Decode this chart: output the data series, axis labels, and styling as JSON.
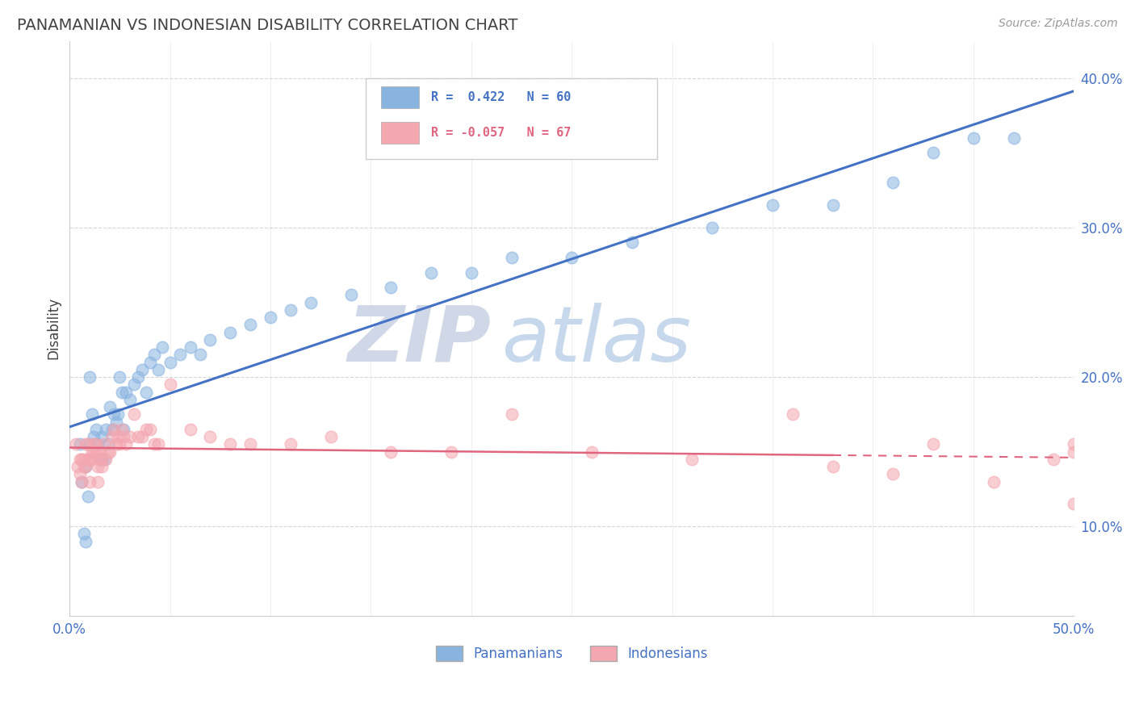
{
  "title": "PANAMANIAN VS INDONESIAN DISABILITY CORRELATION CHART",
  "source": "Source: ZipAtlas.com",
  "ylabel": "Disability",
  "xlim": [
    0.0,
    0.5
  ],
  "ylim": [
    0.04,
    0.425
  ],
  "yticks": [
    0.1,
    0.2,
    0.3,
    0.4
  ],
  "ytick_labels": [
    "10.0%",
    "20.0%",
    "30.0%",
    "40.0%"
  ],
  "xticks": [
    0.0,
    0.05,
    0.1,
    0.15,
    0.2,
    0.25,
    0.3,
    0.35,
    0.4,
    0.45,
    0.5
  ],
  "blue_color": "#8ab4e0",
  "pink_color": "#f4a7b0",
  "line_blue": "#4472c4",
  "line_pink": "#e06680",
  "title_color": "#434343",
  "axis_color": "#4472c4",
  "legend_r1": "R =  0.422   N = 60",
  "legend_r2": "R = -0.057   N = 67",
  "pan_x": [
    0.005,
    0.006,
    0.007,
    0.008,
    0.008,
    0.009,
    0.01,
    0.01,
    0.011,
    0.012,
    0.013,
    0.014,
    0.015,
    0.016,
    0.016,
    0.017,
    0.018,
    0.019,
    0.02,
    0.021,
    0.022,
    0.023,
    0.024,
    0.025,
    0.026,
    0.027,
    0.028,
    0.03,
    0.032,
    0.034,
    0.036,
    0.038,
    0.04,
    0.042,
    0.044,
    0.046,
    0.05,
    0.055,
    0.06,
    0.065,
    0.07,
    0.08,
    0.09,
    0.1,
    0.11,
    0.12,
    0.14,
    0.16,
    0.18,
    0.2,
    0.22,
    0.25,
    0.28,
    0.32,
    0.35,
    0.38,
    0.41,
    0.43,
    0.45,
    0.47
  ],
  "pan_y": [
    0.155,
    0.13,
    0.095,
    0.09,
    0.14,
    0.12,
    0.155,
    0.2,
    0.175,
    0.16,
    0.165,
    0.155,
    0.145,
    0.145,
    0.16,
    0.145,
    0.165,
    0.155,
    0.18,
    0.165,
    0.175,
    0.17,
    0.175,
    0.2,
    0.19,
    0.165,
    0.19,
    0.185,
    0.195,
    0.2,
    0.205,
    0.19,
    0.21,
    0.215,
    0.205,
    0.22,
    0.21,
    0.215,
    0.22,
    0.215,
    0.225,
    0.23,
    0.235,
    0.24,
    0.245,
    0.25,
    0.255,
    0.26,
    0.27,
    0.27,
    0.28,
    0.28,
    0.29,
    0.3,
    0.315,
    0.315,
    0.33,
    0.35,
    0.36,
    0.36
  ],
  "ind_x": [
    0.003,
    0.004,
    0.005,
    0.005,
    0.006,
    0.006,
    0.007,
    0.007,
    0.008,
    0.008,
    0.009,
    0.009,
    0.01,
    0.01,
    0.011,
    0.011,
    0.012,
    0.012,
    0.013,
    0.013,
    0.014,
    0.014,
    0.015,
    0.015,
    0.016,
    0.016,
    0.017,
    0.018,
    0.019,
    0.02,
    0.021,
    0.022,
    0.023,
    0.024,
    0.025,
    0.026,
    0.027,
    0.028,
    0.03,
    0.032,
    0.034,
    0.036,
    0.038,
    0.04,
    0.042,
    0.044,
    0.05,
    0.06,
    0.07,
    0.08,
    0.09,
    0.11,
    0.13,
    0.16,
    0.19,
    0.22,
    0.26,
    0.31,
    0.36,
    0.38,
    0.41,
    0.43,
    0.46,
    0.49,
    0.5,
    0.5,
    0.5
  ],
  "ind_y": [
    0.155,
    0.14,
    0.145,
    0.135,
    0.145,
    0.13,
    0.145,
    0.14,
    0.14,
    0.155,
    0.145,
    0.155,
    0.145,
    0.13,
    0.145,
    0.15,
    0.15,
    0.155,
    0.15,
    0.155,
    0.14,
    0.13,
    0.145,
    0.15,
    0.145,
    0.14,
    0.155,
    0.145,
    0.15,
    0.15,
    0.16,
    0.165,
    0.155,
    0.16,
    0.155,
    0.165,
    0.16,
    0.155,
    0.16,
    0.175,
    0.16,
    0.16,
    0.165,
    0.165,
    0.155,
    0.155,
    0.195,
    0.165,
    0.16,
    0.155,
    0.155,
    0.155,
    0.16,
    0.15,
    0.15,
    0.175,
    0.15,
    0.145,
    0.175,
    0.14,
    0.135,
    0.155,
    0.13,
    0.145,
    0.115,
    0.155,
    0.15
  ],
  "watermark_zip_color": "#d0d8e8",
  "watermark_atlas_color": "#c8d8ec"
}
